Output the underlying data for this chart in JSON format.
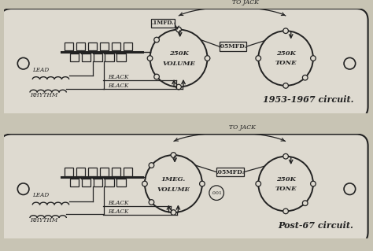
{
  "bg_color": "#c8c4b4",
  "panel_color": "#dedad0",
  "line_color": "#222222",
  "circuit1_label": "1953-1967 circuit.",
  "circuit2_label": "Post-67 circuit.",
  "vol1_label_top": "250K",
  "vol1_label_bot": "VOLUME",
  "vol2_label_top": "1MEG.",
  "vol2_label_bot": "VOLUME",
  "tone_label_top": "250K",
  "tone_label_bot": "TONE",
  "cap1_vol": ".1MFD.",
  "cap_tone": ".05MFD.",
  "cap2_extra": ".001",
  "to_jack": "TO JACK",
  "lead": "LEAD",
  "rhythm": "RHYTHM",
  "black1": "BLACK",
  "black2": "BLACK"
}
